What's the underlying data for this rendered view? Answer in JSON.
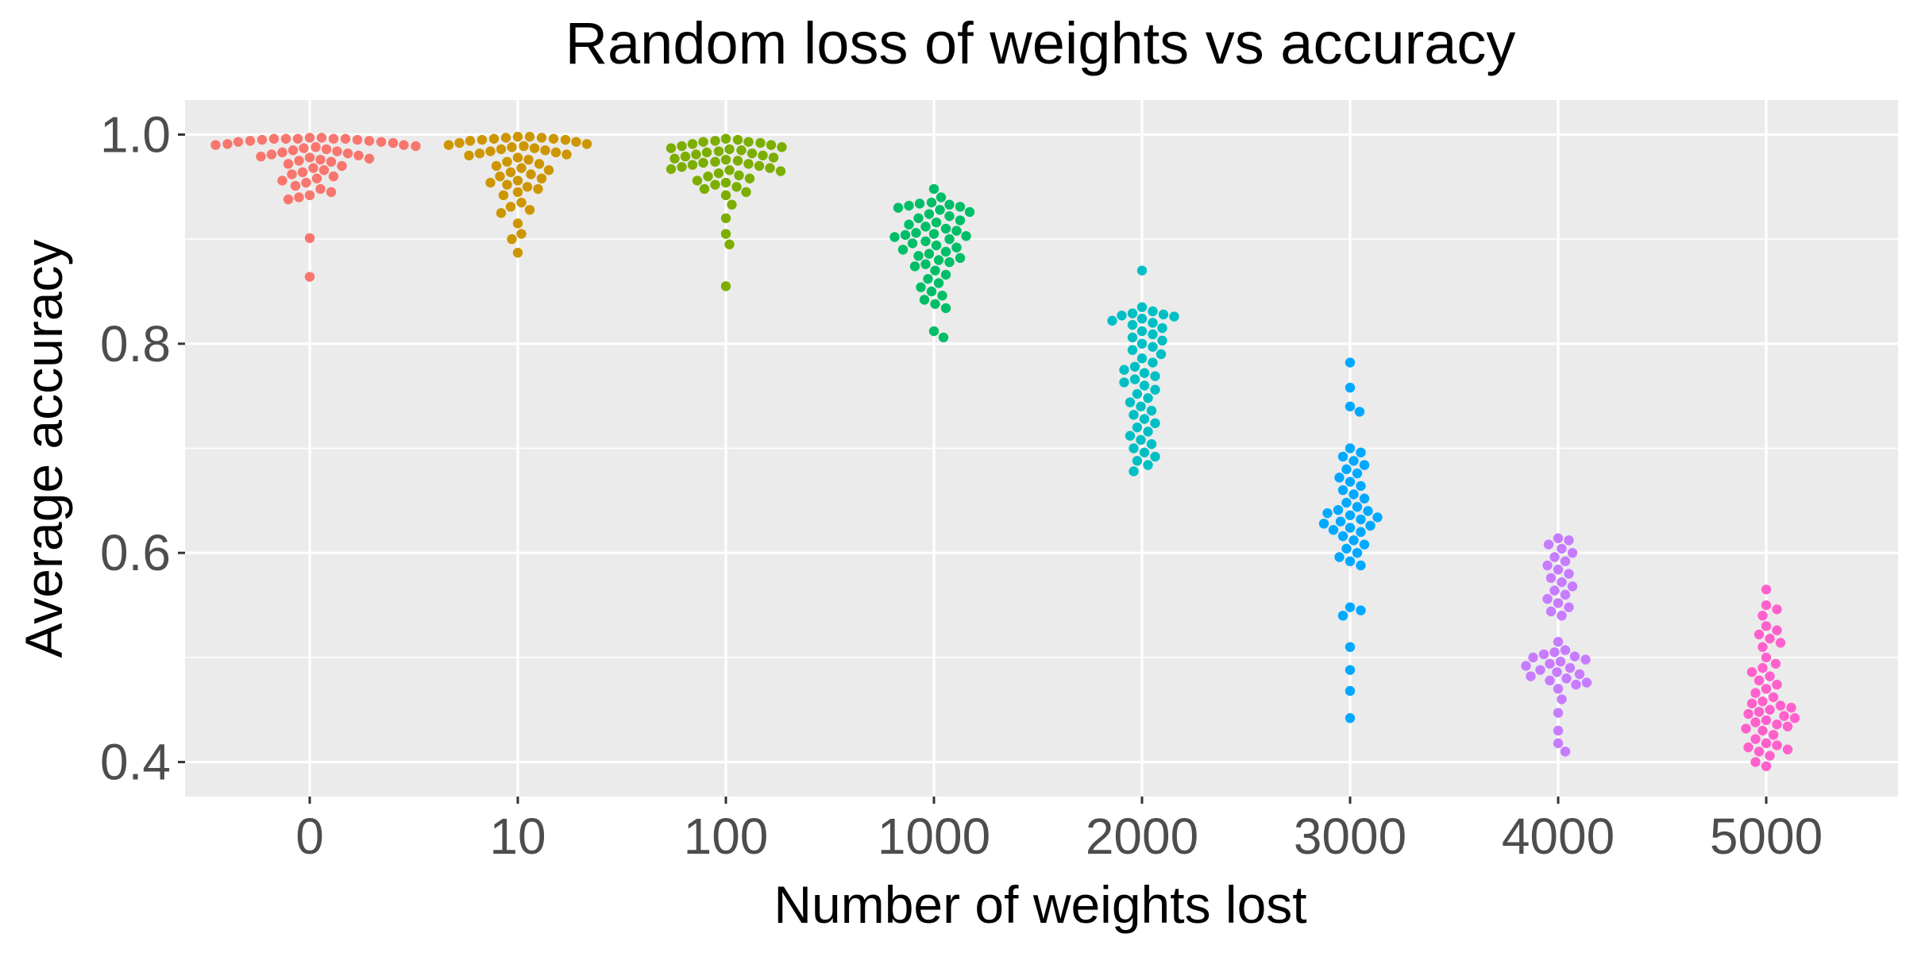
{
  "chart_data": {
    "type": "scatter",
    "subtype": "beeswarm",
    "title": "Random loss of weights vs accuracy",
    "xlabel": "Number of weights lost",
    "ylabel": "Average accuracy",
    "categories": [
      "0",
      "10",
      "100",
      "1000",
      "2000",
      "3000",
      "4000",
      "5000"
    ],
    "ylim": [
      0.367,
      1.033
    ],
    "yticks": [
      "0.4",
      "0.6",
      "0.8",
      "1.0"
    ],
    "ytick_values": [
      0.4,
      0.6,
      0.8,
      1.0
    ],
    "grid": true,
    "panel_background": "#ebebeb",
    "legend": "none",
    "series": [
      {
        "category": "0",
        "color": "#f8766d",
        "values": [
          0.997,
          0.997,
          0.996,
          0.996,
          0.996,
          0.996,
          0.996,
          0.995,
          0.995,
          0.994,
          0.994,
          0.993,
          0.993,
          0.992,
          0.991,
          0.99,
          0.99,
          0.989,
          0.988,
          0.987,
          0.986,
          0.985,
          0.984,
          0.983,
          0.982,
          0.981,
          0.98,
          0.979,
          0.978,
          0.977,
          0.976,
          0.975,
          0.974,
          0.972,
          0.97,
          0.968,
          0.966,
          0.964,
          0.962,
          0.96,
          0.958,
          0.956,
          0.954,
          0.951,
          0.948,
          0.945,
          0.942,
          0.94,
          0.938,
          0.901,
          0.864
        ]
      },
      {
        "category": "10",
        "color": "#cd9600",
        "values": [
          0.998,
          0.998,
          0.997,
          0.997,
          0.996,
          0.996,
          0.995,
          0.995,
          0.994,
          0.993,
          0.992,
          0.991,
          0.99,
          0.989,
          0.988,
          0.987,
          0.986,
          0.985,
          0.984,
          0.983,
          0.982,
          0.981,
          0.98,
          0.978,
          0.976,
          0.974,
          0.972,
          0.97,
          0.968,
          0.966,
          0.964,
          0.962,
          0.96,
          0.958,
          0.956,
          0.954,
          0.952,
          0.95,
          0.948,
          0.945,
          0.942,
          0.935,
          0.931,
          0.928,
          0.925,
          0.915,
          0.905,
          0.9,
          0.887
        ]
      },
      {
        "category": "100",
        "color": "#7cae00",
        "values": [
          0.996,
          0.995,
          0.994,
          0.993,
          0.993,
          0.992,
          0.991,
          0.99,
          0.989,
          0.988,
          0.987,
          0.986,
          0.985,
          0.984,
          0.983,
          0.982,
          0.981,
          0.98,
          0.979,
          0.978,
          0.977,
          0.976,
          0.975,
          0.974,
          0.973,
          0.972,
          0.971,
          0.97,
          0.969,
          0.968,
          0.967,
          0.966,
          0.965,
          0.963,
          0.961,
          0.96,
          0.958,
          0.956,
          0.954,
          0.952,
          0.95,
          0.948,
          0.945,
          0.942,
          0.933,
          0.92,
          0.905,
          0.895,
          0.855
        ]
      },
      {
        "category": "1000",
        "color": "#00be67",
        "values": [
          0.948,
          0.94,
          0.935,
          0.934,
          0.933,
          0.932,
          0.931,
          0.93,
          0.928,
          0.926,
          0.924,
          0.922,
          0.92,
          0.918,
          0.916,
          0.914,
          0.912,
          0.91,
          0.908,
          0.906,
          0.905,
          0.904,
          0.903,
          0.902,
          0.9,
          0.898,
          0.896,
          0.894,
          0.892,
          0.89,
          0.888,
          0.886,
          0.884,
          0.882,
          0.88,
          0.878,
          0.876,
          0.874,
          0.87,
          0.866,
          0.862,
          0.858,
          0.854,
          0.85,
          0.846,
          0.842,
          0.838,
          0.834,
          0.812,
          0.806
        ]
      },
      {
        "category": "2000",
        "color": "#00bfc4",
        "values": [
          0.87,
          0.835,
          0.831,
          0.829,
          0.828,
          0.827,
          0.826,
          0.824,
          0.822,
          0.82,
          0.818,
          0.815,
          0.812,
          0.809,
          0.806,
          0.803,
          0.8,
          0.797,
          0.794,
          0.79,
          0.786,
          0.782,
          0.778,
          0.775,
          0.772,
          0.769,
          0.766,
          0.763,
          0.76,
          0.756,
          0.752,
          0.748,
          0.744,
          0.74,
          0.736,
          0.732,
          0.728,
          0.724,
          0.72,
          0.716,
          0.712,
          0.708,
          0.704,
          0.7,
          0.696,
          0.692,
          0.688,
          0.684,
          0.678
        ]
      },
      {
        "category": "3000",
        "color": "#00a9ff",
        "values": [
          0.782,
          0.758,
          0.74,
          0.735,
          0.7,
          0.696,
          0.692,
          0.688,
          0.684,
          0.68,
          0.676,
          0.672,
          0.668,
          0.664,
          0.66,
          0.656,
          0.652,
          0.648,
          0.644,
          0.641,
          0.64,
          0.638,
          0.636,
          0.634,
          0.632,
          0.63,
          0.628,
          0.626,
          0.624,
          0.622,
          0.62,
          0.616,
          0.612,
          0.608,
          0.604,
          0.6,
          0.596,
          0.592,
          0.588,
          0.548,
          0.545,
          0.54,
          0.51,
          0.488,
          0.468,
          0.442
        ]
      },
      {
        "category": "4000",
        "color": "#c77cff",
        "values": [
          0.614,
          0.612,
          0.608,
          0.604,
          0.6,
          0.596,
          0.592,
          0.588,
          0.584,
          0.58,
          0.576,
          0.572,
          0.568,
          0.564,
          0.56,
          0.556,
          0.552,
          0.548,
          0.544,
          0.54,
          0.515,
          0.507,
          0.505,
          0.503,
          0.501,
          0.5,
          0.498,
          0.496,
          0.494,
          0.492,
          0.49,
          0.488,
          0.486,
          0.484,
          0.482,
          0.48,
          0.478,
          0.476,
          0.474,
          0.47,
          0.46,
          0.447,
          0.43,
          0.418,
          0.41
        ]
      },
      {
        "category": "5000",
        "color": "#ff61cc",
        "values": [
          0.565,
          0.55,
          0.546,
          0.54,
          0.53,
          0.526,
          0.522,
          0.518,
          0.514,
          0.51,
          0.5,
          0.494,
          0.49,
          0.486,
          0.482,
          0.478,
          0.474,
          0.47,
          0.466,
          0.462,
          0.458,
          0.456,
          0.454,
          0.452,
          0.45,
          0.448,
          0.446,
          0.444,
          0.442,
          0.44,
          0.438,
          0.436,
          0.434,
          0.432,
          0.43,
          0.426,
          0.422,
          0.418,
          0.416,
          0.414,
          0.412,
          0.41,
          0.406,
          0.4,
          0.396
        ]
      }
    ]
  }
}
